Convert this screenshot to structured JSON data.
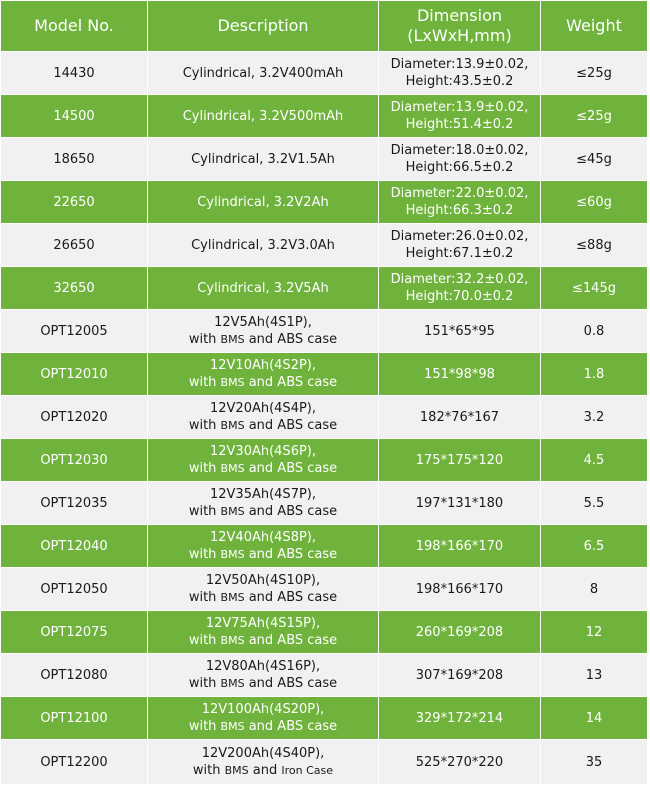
{
  "headers": {
    "model": "Model No.",
    "description": "Description",
    "dimension_line1": "Dimension",
    "dimension_line2": "(LxWxH,mm)",
    "weight": "Weight"
  },
  "rows": [
    {
      "model": "14430",
      "desc1": "Cylindrical, 3.2V400mAh",
      "desc2": "",
      "dim1": "Diameter:13.9±0.02,",
      "dim2": "Height:43.5±0.2",
      "weight": "≤25g"
    },
    {
      "model": "14500",
      "desc1": "Cylindrical, 3.2V500mAh",
      "desc2": "",
      "dim1": "Diameter:13.9±0.02,",
      "dim2": "Height:51.4±0.2",
      "weight": "≤25g"
    },
    {
      "model": "18650",
      "desc1": "Cylindrical, 3.2V1.5Ah",
      "desc2": "",
      "dim1": "Diameter:18.0±0.02,",
      "dim2": "Height:66.5±0.2",
      "weight": "≤45g"
    },
    {
      "model": "22650",
      "desc1": "Cylindrical, 3.2V2Ah",
      "desc2": "",
      "dim1": "Diameter:22.0±0.02,",
      "dim2": "Height:66.3±0.2",
      "weight": "≤60g"
    },
    {
      "model": "26650",
      "desc1": "Cylindrical, 3.2V3.0Ah",
      "desc2": "",
      "dim1": "Diameter:26.0±0.02,",
      "dim2": "Height:67.1±0.2",
      "weight": "≤88g"
    },
    {
      "model": "32650",
      "desc1": "Cylindrical, 3.2V5Ah",
      "desc2": "",
      "dim1": "Diameter:32.2±0.02,",
      "dim2": "Height:70.0±0.2",
      "weight": "≤145g"
    },
    {
      "model": "OPT12005",
      "desc1": "12V5Ah(4S1P),",
      "desc2_a": "with ",
      "desc2_b": "BMS",
      "desc2_c": " and ABS case",
      "dim1": "151*65*95",
      "dim2": "",
      "weight": "0.8"
    },
    {
      "model": "OPT12010",
      "desc1": "12V10Ah(4S2P),",
      "desc2_a": "with ",
      "desc2_b": "BMS",
      "desc2_c": " and ABS case",
      "dim1": "151*98*98",
      "dim2": "",
      "weight": "1.8"
    },
    {
      "model": "OPT12020",
      "desc1": "12V20Ah(4S4P),",
      "desc2_a": "with ",
      "desc2_b": "BMS",
      "desc2_c": " and ABS case",
      "dim1": "182*76*167",
      "dim2": "",
      "weight": "3.2"
    },
    {
      "model": "OPT12030",
      "desc1": "12V30Ah(4S6P),",
      "desc2_a": "with ",
      "desc2_b": "BMS",
      "desc2_c": " and ABS case",
      "dim1": "175*175*120",
      "dim2": "",
      "weight": "4.5"
    },
    {
      "model": "OPT12035",
      "desc1": "12V35Ah(4S7P),",
      "desc2_a": "with ",
      "desc2_b": "BMS",
      "desc2_c": " and ABS case",
      "dim1": "197*131*180",
      "dim2": "",
      "weight": "5.5"
    },
    {
      "model": "OPT12040",
      "desc1": "12V40Ah(4S8P),",
      "desc2_a": "with ",
      "desc2_b": "BMS",
      "desc2_c": " and ABS case",
      "dim1": "198*166*170",
      "dim2": "",
      "weight": "6.5"
    },
    {
      "model": "OPT12050",
      "desc1": "12V50Ah(4S10P),",
      "desc2_a": "with ",
      "desc2_b": "BMS",
      "desc2_c": " and ABS case",
      "dim1": "198*166*170",
      "dim2": "",
      "weight": "8"
    },
    {
      "model": "OPT12075",
      "desc1": "12V75Ah(4S15P),",
      "desc2_a": "with ",
      "desc2_b": "BMS",
      "desc2_c": " and ABS case",
      "dim1": "260*169*208",
      "dim2": "",
      "weight": "12"
    },
    {
      "model": "OPT12080",
      "desc1": "12V80Ah(4S16P),",
      "desc2_a": "with ",
      "desc2_b": "BMS",
      "desc2_c": " and ABS case",
      "dim1": "307*169*208",
      "dim2": "",
      "weight": "13"
    },
    {
      "model": "OPT12100",
      "desc1": "12V100Ah(4S20P),",
      "desc2_a": "with ",
      "desc2_b": "BMS",
      "desc2_c": " and ABS case",
      "dim1": "329*172*214",
      "dim2": "",
      "weight": "14"
    },
    {
      "model": "OPT12200",
      "desc1": "12V200Ah(4S40P),",
      "desc2_a": "with ",
      "desc2_b": "BMS",
      "desc2_c": " and ",
      "desc2_d": "Iron Case",
      "dim1": "525*270*220",
      "dim2": "",
      "weight": "35"
    }
  ],
  "colors": {
    "green": "#6fb33d",
    "gray": "#f1f1f1",
    "border": "#ffffff"
  }
}
